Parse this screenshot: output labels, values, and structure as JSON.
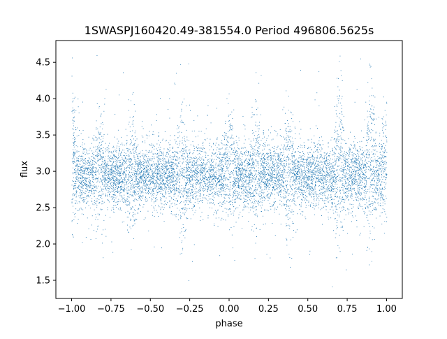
{
  "chart_data": {
    "type": "scatter",
    "title": "1SWASPJ160420.49-381554.0 Period 496806.5625s",
    "xlabel": "phase",
    "ylabel": "flux",
    "xlim": [
      -1.1,
      1.1
    ],
    "ylim": [
      1.25,
      4.8
    ],
    "xticks": [
      -1.0,
      -0.75,
      -0.5,
      -0.25,
      0.0,
      0.25,
      0.5,
      0.75,
      1.0
    ],
    "xtick_labels": [
      "−1.00",
      "−0.75",
      "−0.50",
      "−0.25",
      "0.00",
      "0.25",
      "0.50",
      "0.75",
      "1.00"
    ],
    "yticks": [
      1.5,
      2.0,
      2.5,
      3.0,
      3.5,
      4.0,
      4.5
    ],
    "ytick_labels": [
      "1.5",
      "2.0",
      "2.5",
      "3.0",
      "3.5",
      "4.0",
      "4.5"
    ],
    "grid": false,
    "marker_color": "#1f77b4",
    "points_note": "dense folded light curve, roughly 9000 points over phase -1 to 1, flux clustered near 2.95 with spread about 0.35; range approx 1.4 to 4.6",
    "series": [
      {
        "x_range": [
          -1.0,
          1.0
        ],
        "flux_median": 2.95,
        "flux_min": 1.4,
        "flux_max": 4.6,
        "dense_clusters": [
          {
            "x": -1.0,
            "y_range": [
              2.7,
              4.1
            ]
          },
          {
            "x": -0.83,
            "y_range": [
              2.6,
              3.7
            ]
          },
          {
            "x": -0.62,
            "y_range": [
              2.5,
              3.5
            ]
          },
          {
            "x": -0.3,
            "y_range": [
              2.3,
              3.6
            ]
          },
          {
            "x": 0.0,
            "y_range": [
              2.6,
              3.9
            ]
          },
          {
            "x": 0.17,
            "y_range": [
              2.6,
              3.8
            ]
          },
          {
            "x": 0.38,
            "y_range": [
              2.4,
              3.7
            ]
          },
          {
            "x": 0.7,
            "y_range": [
              2.3,
              4.3
            ]
          },
          {
            "x": 0.9,
            "y_range": [
              2.1,
              4.5
            ]
          },
          {
            "x": 1.0,
            "y_range": [
              2.7,
              4.1
            ]
          }
        ]
      }
    ]
  }
}
